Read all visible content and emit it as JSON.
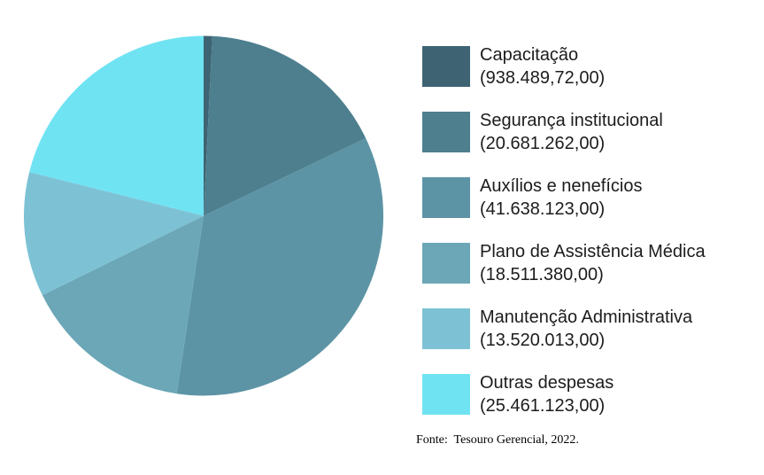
{
  "chart_data": {
    "type": "pie",
    "title": "",
    "legend_position": "right",
    "direction": "clockwise",
    "start_angle_deg": 0,
    "total": 120750390.72,
    "source_note": "Fonte:  Tesouro Gerencial, 2022.",
    "items": [
      {
        "label": "Capacitação",
        "value_text": "(938.489,72,00)",
        "value": 938489.72,
        "color": "#3e6473"
      },
      {
        "label": "Segurança institucional",
        "value_text": "(20.681.262,00)",
        "value": 20681262,
        "color": "#4d7f8e"
      },
      {
        "label": "Auxílios e nenefícios",
        "value_text": "(41.638.123,00)",
        "value": 41638123,
        "color": "#5c94a5"
      },
      {
        "label": "Plano de Assistência Médica",
        "value_text": "(18.511.380,00)",
        "value": 18511380,
        "color": "#6ba7b6"
      },
      {
        "label": "Manutenção Administrativa",
        "value_text": "(13.520.013,00)",
        "value": 13520013,
        "color": "#7dc2d4"
      },
      {
        "label": "Outras despesas",
        "value_text": "(25.461.123,00)",
        "value": 25461123,
        "color": "#70e3f3"
      }
    ]
  }
}
